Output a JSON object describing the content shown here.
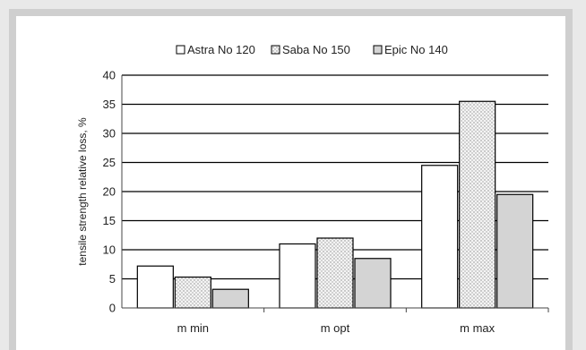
{
  "chart_data": {
    "type": "bar",
    "categories": [
      "m min",
      "m opt",
      "m max"
    ],
    "series": [
      {
        "name": "Astra No 120",
        "values": [
          7.2,
          11,
          24.5
        ],
        "fill": "#ffffff",
        "pattern": "none"
      },
      {
        "name": "Saba No 150",
        "values": [
          5.3,
          12,
          35.5
        ],
        "fill": "#f2f2f2",
        "pattern": "dots"
      },
      {
        "name": "Epic No 140",
        "values": [
          3.2,
          8.5,
          19.5
        ],
        "fill": "#d4d4d4",
        "pattern": "none"
      }
    ],
    "title": "",
    "xlabel": "",
    "ylabel": "tensile strength relative loss, %",
    "ylim": [
      0,
      40
    ],
    "yticks": [
      "0",
      "5",
      "10",
      "15",
      "20",
      "25",
      "30",
      "35",
      "40"
    ],
    "grid": true,
    "legend_position": "top-center"
  }
}
